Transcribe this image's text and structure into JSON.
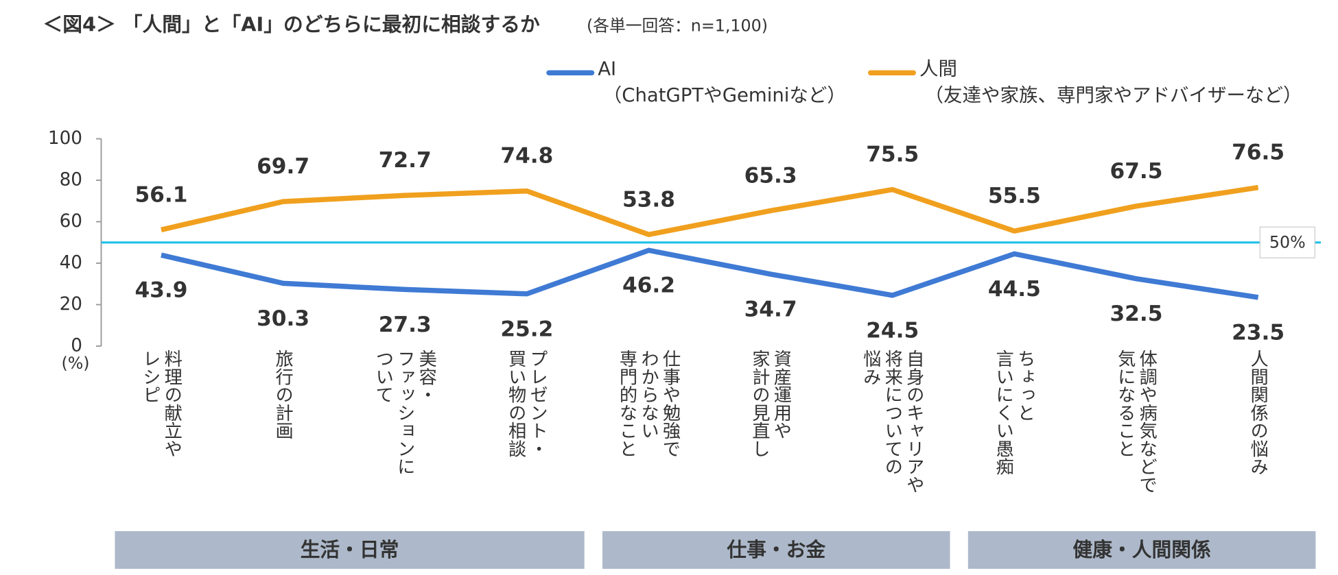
{
  "chart_data": {
    "type": "line",
    "title": "＜図4＞ 「人間」と「AI」のどちらに最初に相談するか",
    "subtitle": "(各単一回答：n=1,100)",
    "ylabel": "(%)",
    "categories": [
      "料理の献立や\nレシピ",
      "旅行の計画",
      "美容・\nファッションに\nついて",
      "プレゼント・\n買い物の相談",
      "仕事や勉強で\nわからない\n専門的なこと",
      "資産運用や\n家計の見直し",
      "自身のキャリアや\n将来についての\n悩み",
      "ちょっと\n言いにくい愚痴",
      "体調や病気などで\n気になること",
      "人間関係の悩み"
    ],
    "series": [
      {
        "name": "AI",
        "note": "（ChatGPTやGeminiなど）",
        "color": "#3f7ad4",
        "values": [
          43.9,
          30.3,
          27.3,
          25.2,
          46.2,
          34.7,
          24.5,
          44.5,
          32.5,
          23.5
        ]
      },
      {
        "name": "人間",
        "note": "（友達や家族、専門家やアドバイザーなど）",
        "color": "#f0a01e",
        "values": [
          56.1,
          69.7,
          72.7,
          74.8,
          53.8,
          65.3,
          75.5,
          55.5,
          67.5,
          76.5
        ]
      }
    ],
    "groups": [
      {
        "label": "生活・日常",
        "span": 4
      },
      {
        "label": "仕事・お金",
        "span": 3
      },
      {
        "label": "健康・人間関係",
        "span": 3
      }
    ],
    "reference_line": {
      "value": 50,
      "label": "50%",
      "color": "#1fc0e6"
    },
    "ylim": [
      0,
      100
    ],
    "yticks": [
      0,
      20,
      40,
      60,
      80,
      100
    ]
  }
}
